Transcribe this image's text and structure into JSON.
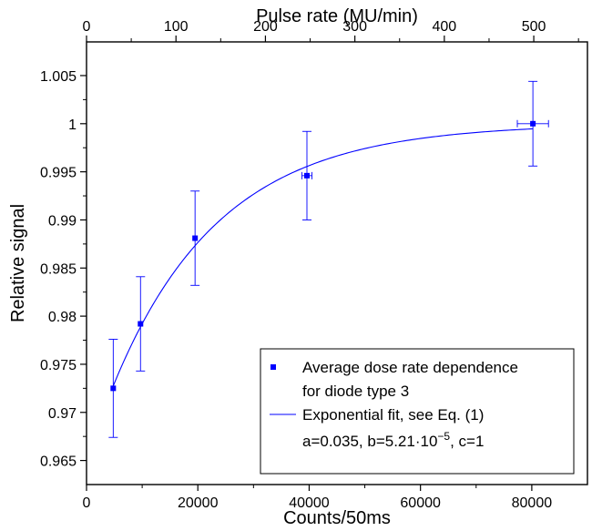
{
  "chart_data": {
    "type": "scatter",
    "x_bottom": {
      "label": "Counts/50ms",
      "lim": [
        0,
        90000
      ],
      "ticks": [
        0,
        20000,
        40000,
        60000,
        80000
      ],
      "tick_labels": [
        "0",
        "20000",
        "40000",
        "60000",
        "80000"
      ]
    },
    "x_top": {
      "label": "Pulse rate (MU/min)",
      "lim": [
        0,
        560
      ],
      "ticks": [
        0,
        100,
        200,
        300,
        400,
        500
      ],
      "tick_labels": [
        "0",
        "100",
        "200",
        "300",
        "400",
        "500"
      ]
    },
    "y": {
      "label": "Relative signal",
      "lim": [
        0.9625,
        1.0085
      ],
      "ticks": [
        0.965,
        0.97,
        0.975,
        0.98,
        0.985,
        0.99,
        0.995,
        1.0,
        1.005
      ],
      "tick_labels": [
        "0.965",
        "0.97",
        "0.975",
        "0.98",
        "0.985",
        "0.99",
        "0.995",
        "1",
        "1.005"
      ]
    },
    "series": [
      {
        "name": "Average dose rate dependence for diode type 3",
        "kind": "points-with-error-bars",
        "color": "#0000ff",
        "points": [
          {
            "x": 4800,
            "y": 0.9725,
            "yerr": 0.0051,
            "xerr": 0
          },
          {
            "x": 9700,
            "y": 0.9792,
            "yerr": 0.0049,
            "xerr": 0
          },
          {
            "x": 19500,
            "y": 0.9881,
            "yerr": 0.0049,
            "xerr": 0
          },
          {
            "x": 39600,
            "y": 0.9946,
            "yerr": 0.0046,
            "xerr": 900
          },
          {
            "x": 80200,
            "y": 1.0,
            "yerr": 0.0044,
            "xerr": 2800
          }
        ]
      },
      {
        "name": "Exponential fit, see Eq. (1)",
        "kind": "line",
        "color": "#0000ff",
        "x_range": [
          4800,
          80200
        ],
        "params": {
          "a": 0.035,
          "b": 5.21e-05,
          "c": 1
        }
      }
    ],
    "legend": {
      "position": "bottom-right",
      "entries": [
        {
          "lines": [
            "Average dose rate dependence",
            "for diode type 3"
          ]
        },
        {
          "lines": [
            "Exponential fit, see Eq. (1)"
          ]
        }
      ],
      "params_text": {
        "prefix": "a=0.035, b=5.21·10",
        "exponent": "−5",
        "suffix": ", c=1"
      }
    }
  }
}
